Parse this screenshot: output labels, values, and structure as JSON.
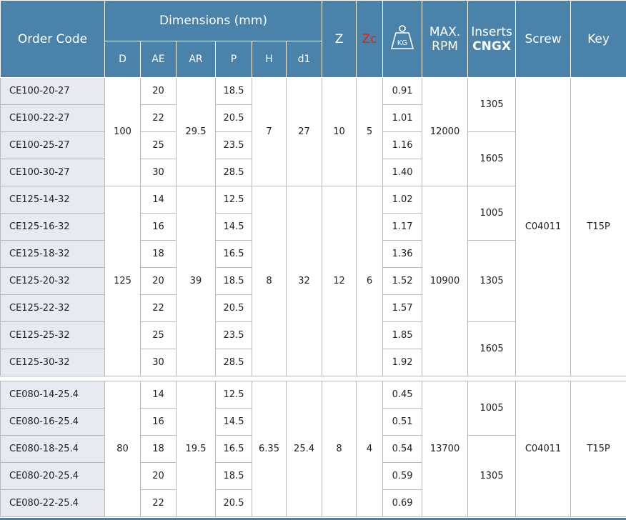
{
  "header": {
    "order_code": "Order Code",
    "dimensions": "Dimensions (mm)",
    "d": "D",
    "ae": "AE",
    "ar": "AR",
    "p": "P",
    "h": "H",
    "d1": "d1",
    "z": "Z",
    "zc": "Zc",
    "kg": "KG",
    "max_rpm_1": "MAX.",
    "max_rpm_2": "RPM",
    "inserts_1": "Inserts",
    "inserts_2": "CNGX",
    "screw": "Screw",
    "key": "Key"
  },
  "group1": {
    "rows": [
      {
        "code": "CE100-20-27",
        "ae": "20",
        "p": "18.5",
        "kg": "0.91"
      },
      {
        "code": "CE100-22-27",
        "ae": "22",
        "p": "20.5",
        "kg": "1.01"
      },
      {
        "code": "CE100-25-27",
        "ae": "25",
        "p": "23.5",
        "kg": "1.16"
      },
      {
        "code": "CE100-30-27",
        "ae": "30",
        "p": "28.5",
        "kg": "1.40"
      },
      {
        "code": "CE125-14-32",
        "ae": "14",
        "p": "12.5",
        "kg": "1.02"
      },
      {
        "code": "CE125-16-32",
        "ae": "16",
        "p": "14.5",
        "kg": "1.17"
      },
      {
        "code": "CE125-18-32",
        "ae": "18",
        "p": "16.5",
        "kg": "1.36"
      },
      {
        "code": "CE125-20-32",
        "ae": "20",
        "p": "18.5",
        "kg": "1.52"
      },
      {
        "code": "CE125-22-32",
        "ae": "22",
        "p": "20.5",
        "kg": "1.57"
      },
      {
        "code": "CE125-25-32",
        "ae": "25",
        "p": "23.5",
        "kg": "1.85"
      },
      {
        "code": "CE125-30-32",
        "ae": "30",
        "p": "28.5",
        "kg": "1.92"
      }
    ],
    "a": {
      "d": "100",
      "ar": "29.5",
      "h": "7",
      "d1": "27",
      "z": "10",
      "zc": "5",
      "rpm": "12000",
      "ins1": "1305",
      "ins2": "1605"
    },
    "b": {
      "d": "125",
      "ar": "39",
      "h": "8",
      "d1": "32",
      "z": "12",
      "zc": "6",
      "rpm": "10900",
      "ins1": "1005",
      "ins2": "1305",
      "ins3": "1605"
    },
    "screw": "C04011",
    "key": "T15P"
  },
  "group2": {
    "rows": [
      {
        "code": "CE080-14-25.4",
        "ae": "14",
        "p": "12.5",
        "kg": "0.45"
      },
      {
        "code": "CE080-16-25.4",
        "ae": "16",
        "p": "14.5",
        "kg": "0.51"
      },
      {
        "code": "CE080-18-25.4",
        "ae": "18",
        "p": "16.5",
        "kg": "0.54"
      },
      {
        "code": "CE080-20-25.4",
        "ae": "20",
        "p": "18.5",
        "kg": "0.59"
      },
      {
        "code": "CE080-22-25.4",
        "ae": "22",
        "p": "20.5",
        "kg": "0.69"
      }
    ],
    "c": {
      "d": "80",
      "ar": "19.5",
      "h": "6.35",
      "d1": "25.4",
      "z": "8",
      "zc": "4",
      "rpm": "13700",
      "ins1": "1005",
      "ins2": "1305"
    },
    "screw": "C04011",
    "key": "T15P"
  }
}
